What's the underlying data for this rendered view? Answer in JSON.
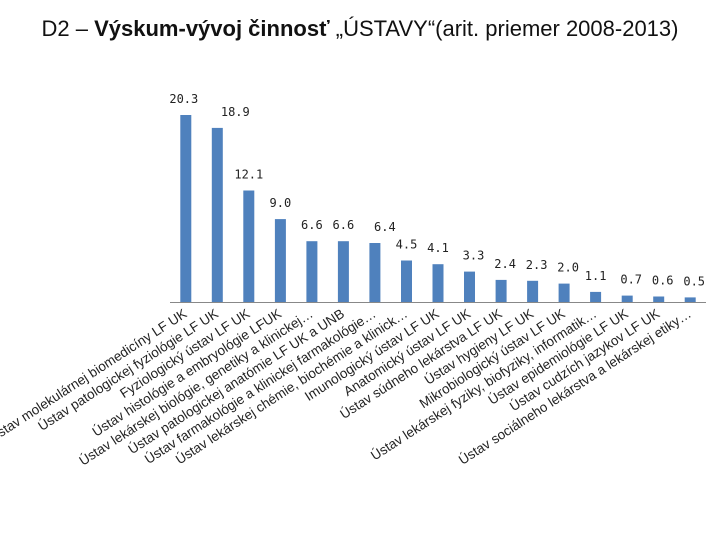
{
  "title": {
    "prefix": "D2 – ",
    "bold": "Výskum-vývoj činnosť",
    "suffix": " „ÚSTAVY“(arit. priemer 2008-2013)"
  },
  "colors": {
    "bar": "#4f81bd",
    "axis": "#888888"
  },
  "chart_data": {
    "type": "bar",
    "categories": [
      "Ústav molekulárnej biomedicíny LF UK",
      "Ústav patologickej fyziológie LF UK",
      "Fyziologický ústav LF UK",
      "Ústav histológie a embryológie LFUK",
      "Ústav lekárskej biológie, genetiky a klinickej…",
      "Ústav patologickej anatómie LF UK a UNB",
      "Ústav farmakológie a klinickej farmakológie…",
      "Ústav lekárskej chémie, biochémie a klinick…",
      "Imunologický ústav LF UK",
      "Anatomický ústav LF UK",
      "Ústav súdneho lekárstva LF UK",
      "Ústav hygieny LF UK",
      "Mikrobiologický ústav LF UK",
      "Ústav lekárskej fyziky, biofyziky, informatik…",
      "Ústav epidemiológie LF UK",
      "Ústav cudzích jazykov LF UK",
      "Ústav sociálneho lekárstva a lekárskej etiky…"
    ],
    "values": [
      20.3,
      18.9,
      12.1,
      9.0,
      6.6,
      6.6,
      6.4,
      4.5,
      4.1,
      3.3,
      2.4,
      2.3,
      2.0,
      1.1,
      0.7,
      0.6,
      0.5
    ],
    "value_labels": [
      "20.3",
      "18.9",
      "12.1",
      "9.0",
      "6.6",
      "6.6",
      "6.4",
      "4.5",
      "4.1",
      "3.3",
      "2.4",
      "2.3",
      "2.0",
      "1.1",
      "0.7",
      "0.6",
      "0.5"
    ],
    "xlabel": "",
    "ylabel": "",
    "ylim": [
      0,
      20.3
    ],
    "grid": false,
    "legend": "none"
  }
}
